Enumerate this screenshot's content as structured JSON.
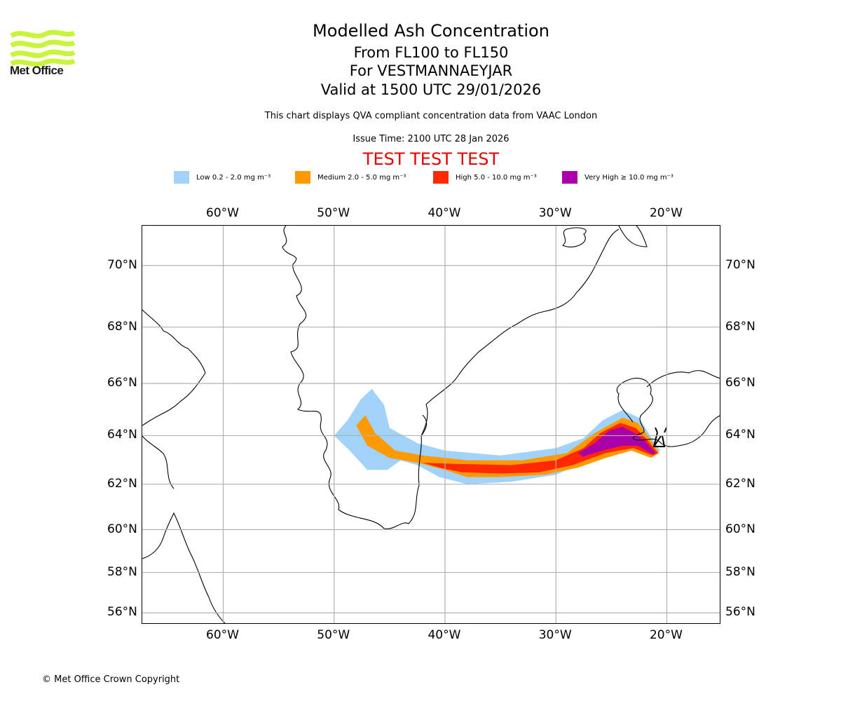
{
  "brand": {
    "name": "Met Office",
    "logo_color": "#c8f53c"
  },
  "titles": {
    "main": "Modelled Ash Concentration",
    "levels": "From FL100 to FL150",
    "volcano": "For VESTMANNAEYJAR",
    "valid": "Valid at 1500 UTC 29/01/2026",
    "note": "This chart displays QVA compliant concentration data from VAAC London",
    "issue": "Issue Time: 2100 UTC 28 Jan 2026",
    "test_banner": "TEST TEST TEST",
    "test_color": "#e50000"
  },
  "legend": [
    {
      "label": "Low 0.2 - 2.0 mg m⁻³",
      "color": "#a0d2fa"
    },
    {
      "label": "Medium 2.0 - 5.0 mg m⁻³",
      "color": "#ff9900"
    },
    {
      "label": "High 5.0 - 10.0 mg m⁻³",
      "color": "#ff2800"
    },
    {
      "label": "Very High ≥ 10.0 mg m⁻³",
      "color": "#aa00aa"
    }
  ],
  "chart_data": {
    "type": "heatmap",
    "title": "Modelled Ash Concentration",
    "subtitle": "From FL100 to FL150 - For VESTMANNAEYJAR - Valid at 1500 UTC 29/01/2026",
    "projection": "Mercator",
    "lon_range": [
      -67.3,
      -15.1
    ],
    "lat_range": [
      55.4,
      71.2
    ],
    "grid": true,
    "lon_ticks": [
      -60,
      -50,
      -40,
      -30,
      -20
    ],
    "lon_tick_labels": [
      "60°W",
      "50°W",
      "40°W",
      "30°W",
      "20°W"
    ],
    "lat_ticks": [
      70,
      68,
      66,
      64,
      62,
      60,
      58,
      56
    ],
    "lat_tick_labels": [
      "70°N",
      "68°N",
      "66°N",
      "64°N",
      "62°N",
      "60°N",
      "58°N",
      "56°N"
    ],
    "source_location": {
      "name": "VESTMANNAEYJAR",
      "lon": -20.3,
      "lat": 63.4
    },
    "units": "mg m-3",
    "levels": [
      {
        "name": "Low",
        "range": "0.2 - 2.0",
        "color": "#a0d2fa",
        "polygon": [
          [
            -48.8,
            64.6
          ],
          [
            -47.6,
            65.4
          ],
          [
            -46.6,
            65.8
          ],
          [
            -45.5,
            65.2
          ],
          [
            -45.0,
            64.3
          ],
          [
            -42.5,
            63.7
          ],
          [
            -40.0,
            63.4
          ],
          [
            -35.0,
            63.2
          ],
          [
            -30.0,
            63.5
          ],
          [
            -27.5,
            63.9
          ],
          [
            -25.8,
            64.6
          ],
          [
            -24.0,
            65.0
          ],
          [
            -22.5,
            64.7
          ],
          [
            -21.5,
            64.0
          ],
          [
            -20.6,
            63.4
          ],
          [
            -21.3,
            63.2
          ],
          [
            -23.0,
            63.5
          ],
          [
            -25.0,
            63.3
          ],
          [
            -27.5,
            62.9
          ],
          [
            -30.0,
            62.4
          ],
          [
            -34.0,
            62.1
          ],
          [
            -38.0,
            62.0
          ],
          [
            -40.5,
            62.3
          ],
          [
            -42.5,
            62.8
          ],
          [
            -44.0,
            63.0
          ],
          [
            -45.2,
            62.6
          ],
          [
            -47.0,
            62.6
          ],
          [
            -48.6,
            63.4
          ],
          [
            -50.0,
            64.0
          ]
        ]
      },
      {
        "name": "Medium",
        "range": "2.0 - 5.0",
        "color": "#ff9900",
        "polygon": [
          [
            -48.0,
            64.4
          ],
          [
            -47.2,
            64.8
          ],
          [
            -46.3,
            64.1
          ],
          [
            -44.5,
            63.4
          ],
          [
            -42.0,
            63.2
          ],
          [
            -38.0,
            63.0
          ],
          [
            -33.0,
            63.0
          ],
          [
            -29.0,
            63.3
          ],
          [
            -26.5,
            64.1
          ],
          [
            -24.0,
            64.7
          ],
          [
            -22.6,
            64.5
          ],
          [
            -21.7,
            64.0
          ],
          [
            -20.7,
            63.3
          ],
          [
            -21.4,
            63.1
          ],
          [
            -23.2,
            63.4
          ],
          [
            -25.5,
            63.1
          ],
          [
            -28.0,
            62.7
          ],
          [
            -31.0,
            62.4
          ],
          [
            -35.0,
            62.3
          ],
          [
            -38.0,
            62.3
          ],
          [
            -40.0,
            62.6
          ],
          [
            -42.5,
            62.9
          ],
          [
            -45.0,
            63.1
          ],
          [
            -47.0,
            63.6
          ]
        ]
      },
      {
        "name": "High",
        "range": "5.0 - 10.0",
        "color": "#ff2800",
        "polygon": [
          [
            -42.0,
            62.9
          ],
          [
            -39.0,
            62.85
          ],
          [
            -34.0,
            62.8
          ],
          [
            -30.0,
            63.0
          ],
          [
            -27.5,
            63.5
          ],
          [
            -26.0,
            64.1
          ],
          [
            -24.2,
            64.5
          ],
          [
            -22.8,
            64.3
          ],
          [
            -21.9,
            63.9
          ],
          [
            -20.8,
            63.3
          ],
          [
            -21.3,
            63.2
          ],
          [
            -23.0,
            63.5
          ],
          [
            -25.5,
            63.3
          ],
          [
            -28.5,
            62.8
          ],
          [
            -31.5,
            62.5
          ],
          [
            -35.0,
            62.45
          ],
          [
            -38.5,
            62.5
          ],
          [
            -40.5,
            62.7
          ]
        ]
      },
      {
        "name": "Very High",
        "range": ">= 10.0",
        "color": "#aa00aa",
        "polygon": [
          [
            -28.0,
            63.3
          ],
          [
            -26.5,
            63.7
          ],
          [
            -25.2,
            64.2
          ],
          [
            -24.0,
            64.35
          ],
          [
            -22.9,
            64.1
          ],
          [
            -22.0,
            63.8
          ],
          [
            -21.0,
            63.3
          ],
          [
            -21.3,
            63.25
          ],
          [
            -22.6,
            63.6
          ],
          [
            -24.0,
            63.6
          ],
          [
            -25.8,
            63.4
          ],
          [
            -27.6,
            63.15
          ]
        ]
      }
    ]
  },
  "footer": {
    "copyright": "© Met Office Crown Copyright"
  }
}
